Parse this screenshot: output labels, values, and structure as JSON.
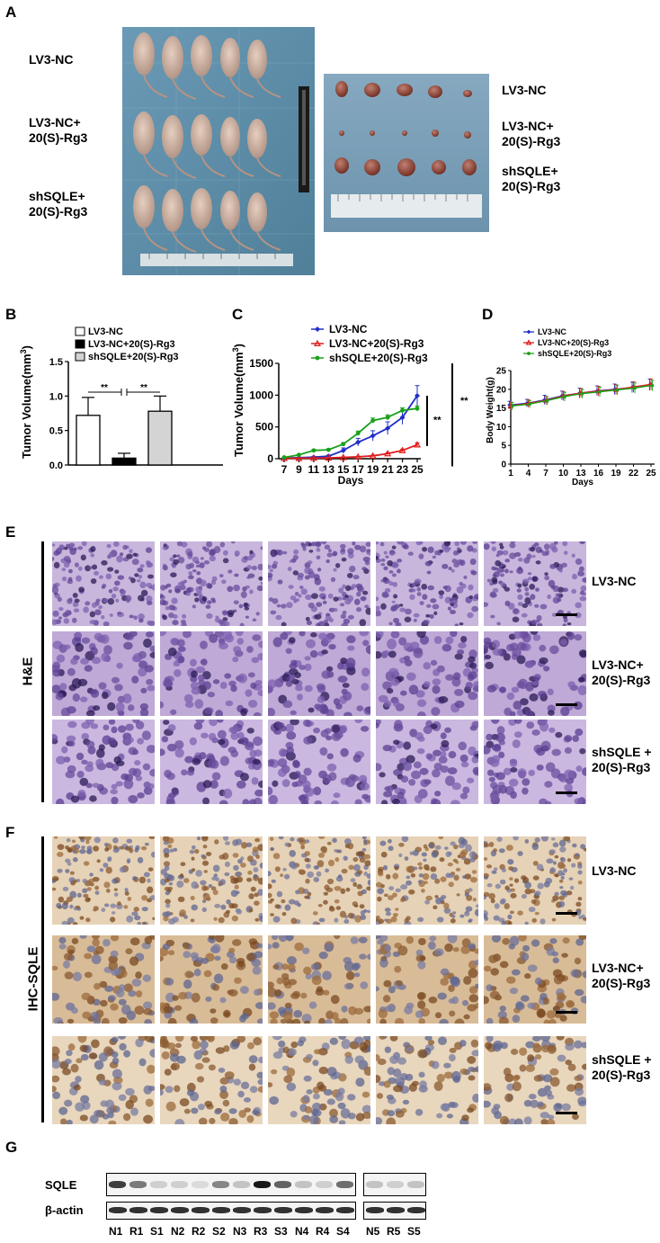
{
  "panels": {
    "A": "A",
    "B": "B",
    "C": "C",
    "D": "D",
    "E": "E",
    "F": "F",
    "G": "G"
  },
  "panelA": {
    "mice_labels": [
      "LV3-NC",
      "LV3-NC+\n20(S)-Rg3",
      "shSQLE+\n20(S)-Rg3"
    ],
    "tumor_labels": [
      "LV3-NC",
      "LV3-NC+\n20(S)-Rg3",
      "shSQLE+\n20(S)-Rg3"
    ]
  },
  "panelB": {
    "chart_data": {
      "type": "bar",
      "categories": [
        "LV3-NC",
        "LV3-NC+20(S)-Rg3",
        "shSQLE+20(S)-Rg3"
      ],
      "values": [
        0.72,
        0.1,
        0.78
      ],
      "errors": [
        0.26,
        0.07,
        0.22
      ],
      "colors": [
        "#ffffff",
        "#000000",
        "#d4d4d4"
      ],
      "ylabel": "Tumor Volume(mm3)",
      "ylabel_main": "Tumor Volume(mm",
      "ylabel_sup": "3",
      "ylabel_close": ")",
      "ylim": [
        0,
        1.5
      ],
      "yticks": [
        "0.0",
        "0.5",
        "1.0",
        "1.5"
      ],
      "legend": [
        "LV3-NC",
        "LV3-NC+20(S)-Rg3",
        "shSQLE+20(S)-Rg3"
      ],
      "significance": [
        "**",
        "**"
      ]
    }
  },
  "panelC": {
    "chart_data": {
      "type": "line",
      "x": [
        7,
        9,
        11,
        13,
        15,
        17,
        19,
        21,
        23,
        25
      ],
      "xticks": [
        "7",
        "9",
        "11",
        "13",
        "15",
        "17",
        "19",
        "21",
        "23",
        "25"
      ],
      "series": [
        {
          "name": "LV3-NC",
          "color": "#1f2ec8",
          "marker": "diamond",
          "values": [
            10,
            15,
            25,
            40,
            130,
            260,
            360,
            480,
            650,
            990
          ],
          "errors": [
            5,
            8,
            10,
            15,
            40,
            60,
            80,
            100,
            110,
            160
          ]
        },
        {
          "name": "LV3-NC+20(S)-Rg3",
          "color": "#e01c1c",
          "marker": "triangle",
          "values": [
            5,
            6,
            8,
            12,
            20,
            30,
            45,
            80,
            130,
            220
          ],
          "errors": [
            2,
            2,
            3,
            4,
            5,
            8,
            10,
            15,
            20,
            30
          ]
        },
        {
          "name": "shSQLE+20(S)-Rg3",
          "color": "#1aa01a",
          "marker": "circle",
          "values": [
            20,
            60,
            130,
            140,
            230,
            400,
            600,
            650,
            760,
            790
          ],
          "errors": [
            5,
            10,
            15,
            15,
            25,
            35,
            40,
            40,
            40,
            40
          ]
        }
      ],
      "xlabel": "Days",
      "ylabel_main": "Tumor Volume(mm",
      "ylabel_sup": "3",
      "ylabel_close": ")",
      "ylim": [
        0,
        1500
      ],
      "yticks": [
        "0",
        "500",
        "1000",
        "1500"
      ],
      "significance": [
        "**",
        "**"
      ]
    }
  },
  "panelD": {
    "chart_data": {
      "type": "line",
      "x": [
        1,
        4,
        7,
        10,
        13,
        16,
        19,
        22,
        25
      ],
      "xticks": [
        "1",
        "4",
        "7",
        "10",
        "13",
        "16",
        "19",
        "22",
        "25"
      ],
      "series": [
        {
          "name": "LV3-NC",
          "color": "#1f2ec8",
          "marker": "diamond",
          "values": [
            15.8,
            16.3,
            17.2,
            18.3,
            19.0,
            19.6,
            20.0,
            20.5,
            21.2
          ],
          "errors": [
            1.0,
            1.0,
            1.2,
            1.2,
            1.3,
            1.3,
            1.4,
            1.4,
            1.5
          ]
        },
        {
          "name": "LV3-NC+20(S)-Rg3",
          "color": "#e01c1c",
          "marker": "triangle",
          "values": [
            15.6,
            16.2,
            17.0,
            18.2,
            19.0,
            19.5,
            19.9,
            20.6,
            21.3
          ],
          "errors": [
            1.0,
            1.0,
            1.1,
            1.2,
            1.2,
            1.3,
            1.3,
            1.4,
            1.5
          ]
        },
        {
          "name": "shSQLE+20(S)-Rg3",
          "color": "#1aa01a",
          "marker": "circle",
          "values": [
            15.5,
            16.0,
            16.9,
            18.0,
            18.8,
            19.3,
            19.8,
            20.3,
            21.0
          ],
          "errors": [
            1.0,
            1.0,
            1.1,
            1.2,
            1.2,
            1.3,
            1.3,
            1.4,
            1.4
          ]
        }
      ],
      "xlabel": "Days",
      "ylabel": "Body Weight(g)",
      "ylim": [
        0,
        25
      ],
      "yticks": [
        "0",
        "5",
        "10",
        "15",
        "20",
        "25"
      ]
    }
  },
  "panelE": {
    "side": "H&E",
    "rows": [
      "LV3-NC",
      "LV3-NC+\n20(S)-Rg3",
      "shSQLE +\n20(S)-Rg3"
    ]
  },
  "panelF": {
    "side": "IHC-SQLE",
    "rows": [
      "LV3-NC",
      "LV3-NC+\n20(S)-Rg3",
      "shSQLE +\n20(S)-Rg3"
    ]
  },
  "panelG": {
    "rows": [
      "SQLE",
      "β-actin"
    ],
    "lanes": [
      "N1",
      "R1",
      "S1",
      "N2",
      "R2",
      "S2",
      "N3",
      "R3",
      "S3",
      "N4",
      "R4",
      "S4",
      "N5",
      "R5",
      "S5"
    ],
    "sqle_intensity": [
      0.75,
      0.5,
      0.15,
      0.15,
      0.1,
      0.45,
      0.2,
      0.9,
      0.6,
      0.2,
      0.15,
      0.55,
      0.2,
      0.15,
      0.2
    ]
  },
  "colors": {
    "mouse_bg": "#5f8ea8",
    "tumor_bg": "#7fa3bc",
    "he_stain": "#7a5aa8",
    "ihc_stain": "#c9a680"
  }
}
